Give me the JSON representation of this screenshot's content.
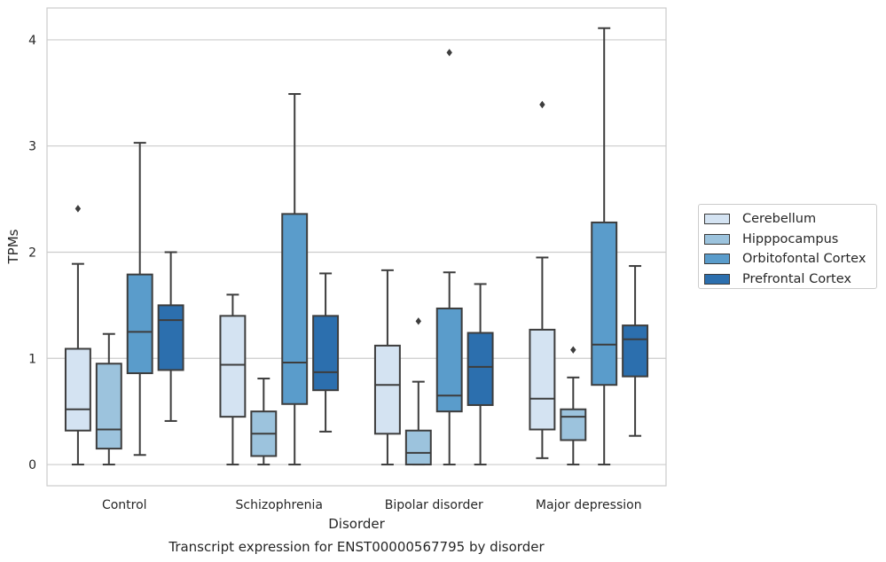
{
  "chart_data": {
    "type": "box",
    "title": "Transcript expression for ENST00000567795 by disorder",
    "xlabel": "Disorder",
    "ylabel": "TPMs",
    "ylim": [
      -0.2,
      4.3
    ],
    "yticks": [
      "0",
      "1",
      "2",
      "3",
      "4"
    ],
    "categories": [
      "Control",
      "Schizophrenia",
      "Bipolar disorder",
      "Major depression"
    ],
    "grid": "horizontal",
    "legend_position": "right",
    "series": [
      {
        "name": "Cerebellum",
        "color": "#d4e3f2",
        "boxes": [
          {
            "whislo": 0.0,
            "q1": 0.32,
            "med": 0.52,
            "q3": 1.09,
            "whishi": 1.89,
            "fliers": [
              2.41
            ]
          },
          {
            "whislo": 0.0,
            "q1": 0.45,
            "med": 0.94,
            "q3": 1.4,
            "whishi": 1.6,
            "fliers": []
          },
          {
            "whislo": 0.0,
            "q1": 0.29,
            "med": 0.75,
            "q3": 1.12,
            "whishi": 1.83,
            "fliers": []
          },
          {
            "whislo": 0.06,
            "q1": 0.33,
            "med": 0.62,
            "q3": 1.27,
            "whishi": 1.95,
            "fliers": [
              3.39
            ]
          }
        ]
      },
      {
        "name": "Hipppocampus",
        "color": "#9cc3dd",
        "boxes": [
          {
            "whislo": 0.0,
            "q1": 0.15,
            "med": 0.33,
            "q3": 0.95,
            "whishi": 1.23,
            "fliers": []
          },
          {
            "whislo": 0.0,
            "q1": 0.08,
            "med": 0.29,
            "q3": 0.5,
            "whishi": 0.81,
            "fliers": []
          },
          {
            "whislo": 0.0,
            "q1": 0.0,
            "med": 0.11,
            "q3": 0.32,
            "whishi": 0.78,
            "fliers": [
              1.35
            ]
          },
          {
            "whislo": 0.0,
            "q1": 0.23,
            "med": 0.45,
            "q3": 0.52,
            "whishi": 0.82,
            "fliers": [
              1.08
            ]
          }
        ]
      },
      {
        "name": "Orbitofontal Cortex",
        "color": "#5a9ccb",
        "boxes": [
          {
            "whislo": 0.09,
            "q1": 0.86,
            "med": 1.25,
            "q3": 1.79,
            "whishi": 3.03,
            "fliers": []
          },
          {
            "whislo": 0.0,
            "q1": 0.57,
            "med": 0.96,
            "q3": 2.36,
            "whishi": 3.49,
            "fliers": []
          },
          {
            "whislo": 0.0,
            "q1": 0.5,
            "med": 0.65,
            "q3": 1.47,
            "whishi": 1.81,
            "fliers": [
              3.88
            ]
          },
          {
            "whislo": 0.0,
            "q1": 0.75,
            "med": 1.13,
            "q3": 2.28,
            "whishi": 4.11,
            "fliers": []
          }
        ]
      },
      {
        "name": "Prefrontal Cortex",
        "color": "#2c6fae",
        "boxes": [
          {
            "whislo": 0.41,
            "q1": 0.89,
            "med": 1.36,
            "q3": 1.5,
            "whishi": 2.0,
            "fliers": []
          },
          {
            "whislo": 0.31,
            "q1": 0.7,
            "med": 0.87,
            "q3": 1.4,
            "whishi": 1.8,
            "fliers": []
          },
          {
            "whislo": 0.0,
            "q1": 0.56,
            "med": 0.92,
            "q3": 1.24,
            "whishi": 1.7,
            "fliers": []
          },
          {
            "whislo": 0.27,
            "q1": 0.83,
            "med": 1.18,
            "q3": 1.31,
            "whishi": 1.87,
            "fliers": []
          }
        ]
      }
    ]
  }
}
